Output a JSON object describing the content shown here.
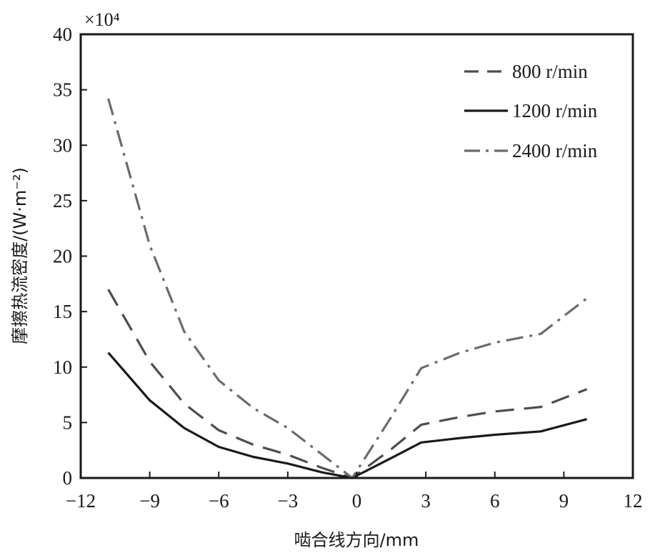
{
  "chart_data": {
    "type": "line",
    "xlabel": "啮合线方向/mm",
    "ylabel": "摩擦热流密度/(W·m⁻²)",
    "y_multiplier": "×10⁴",
    "xlim": [
      -12,
      12
    ],
    "ylim": [
      0,
      40
    ],
    "xticks": [
      -12,
      -9,
      -6,
      -3,
      0,
      3,
      6,
      9,
      12
    ],
    "xtick_labels": [
      "−12",
      "−9",
      "−6",
      "−3",
      "0",
      "3",
      "6",
      "9",
      "12"
    ],
    "yticks": [
      0,
      5,
      10,
      15,
      20,
      25,
      30,
      35,
      40
    ],
    "ytick_labels": [
      "0",
      "5",
      "10",
      "15",
      "20",
      "25",
      "30",
      "35",
      "40"
    ],
    "grid": false,
    "legend_position": "top-right",
    "series": [
      {
        "name": "800 r/min",
        "style": "dashed",
        "color": "#4d4d4d",
        "x": [
          -10.8,
          -9,
          -7.5,
          -6,
          -4.5,
          -3,
          -1.5,
          -0.2,
          1.5,
          2.8,
          4.5,
          6,
          8,
          10
        ],
        "y": [
          17,
          10.5,
          6.7,
          4.3,
          3.0,
          2.1,
          0.9,
          0,
          2.6,
          4.8,
          5.5,
          6.0,
          6.4,
          8.0
        ]
      },
      {
        "name": "1200 r/min",
        "style": "solid",
        "color": "#1a1a1a",
        "x": [
          -10.8,
          -9,
          -7.5,
          -6,
          -4.5,
          -3,
          -1.5,
          -0.2,
          1.5,
          2.8,
          4.5,
          6,
          8,
          10
        ],
        "y": [
          11.3,
          7.0,
          4.5,
          2.8,
          1.9,
          1.3,
          0.5,
          0,
          1.8,
          3.2,
          3.6,
          3.9,
          4.2,
          5.3
        ]
      },
      {
        "name": "2400 r/min",
        "style": "dash-dot",
        "color": "#6b6b6b",
        "x": [
          -10.8,
          -9,
          -7.5,
          -6,
          -4.5,
          -3,
          -1.5,
          -0.2,
          1.5,
          2.8,
          4.5,
          6,
          8,
          10
        ],
        "y": [
          34.2,
          21.0,
          13.2,
          8.8,
          6.3,
          4.5,
          2.1,
          0,
          5.5,
          9.9,
          11.3,
          12.2,
          13.0,
          16.2
        ]
      }
    ]
  }
}
